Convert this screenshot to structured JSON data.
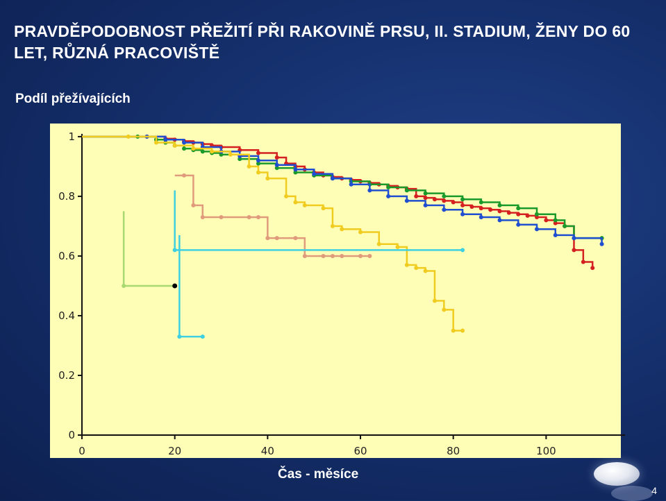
{
  "slide": {
    "title": "PRAVDĚPODOBNOST PŘEŽITÍ PŘI RAKOVINĚ PRSU, II. STADIUM, ŽENY DO 60 LET, RŮZNÁ PRACOVIŠTĚ",
    "page_number": "4"
  },
  "chart_data": {
    "type": "line",
    "subtype": "kaplan-meier step curves",
    "title": "",
    "ylabel": "Podíl přežívajících",
    "xlabel": "Čas - měsíce",
    "xlim": [
      0,
      117
    ],
    "ylim": [
      0,
      1.03
    ],
    "x_ticks": [
      0,
      20,
      40,
      60,
      80,
      100
    ],
    "y_ticks": [
      0,
      0.2,
      0.4,
      0.6,
      0.8,
      1
    ],
    "y_tick_labels": [
      "0",
      "0.2",
      "0.4",
      "0.6",
      "0.8",
      "1"
    ],
    "plot_background": "#fffeb6",
    "series": [
      {
        "name": "red",
        "color": "#d42020",
        "x": [
          0,
          14,
          18,
          20,
          22,
          24,
          26,
          28,
          30,
          34,
          38,
          42,
          44,
          46,
          48,
          50,
          52,
          54,
          56,
          58,
          60,
          62,
          64,
          66,
          68,
          70,
          72,
          74,
          76,
          78,
          80,
          82,
          84,
          86,
          88,
          90,
          92,
          94,
          96,
          98,
          100,
          102,
          104,
          106,
          108,
          110
        ],
        "y": [
          1,
          1,
          0.993,
          0.99,
          0.985,
          0.98,
          0.975,
          0.97,
          0.965,
          0.955,
          0.945,
          0.93,
          0.91,
          0.9,
          0.89,
          0.88,
          0.87,
          0.865,
          0.86,
          0.855,
          0.85,
          0.845,
          0.84,
          0.835,
          0.83,
          0.825,
          0.8,
          0.795,
          0.79,
          0.785,
          0.78,
          0.77,
          0.765,
          0.76,
          0.755,
          0.75,
          0.745,
          0.74,
          0.735,
          0.73,
          0.72,
          0.71,
          0.7,
          0.62,
          0.58,
          0.56
        ]
      },
      {
        "name": "green",
        "color": "#1a9a2a",
        "x": [
          0,
          12,
          16,
          18,
          20,
          22,
          24,
          26,
          28,
          30,
          34,
          38,
          42,
          46,
          50,
          54,
          58,
          62,
          66,
          70,
          74,
          78,
          82,
          86,
          90,
          94,
          98,
          102,
          104,
          106,
          112
        ],
        "y": [
          1,
          1,
          0.99,
          0.98,
          0.97,
          0.96,
          0.955,
          0.95,
          0.945,
          0.94,
          0.925,
          0.91,
          0.895,
          0.88,
          0.87,
          0.86,
          0.85,
          0.84,
          0.83,
          0.82,
          0.81,
          0.8,
          0.79,
          0.78,
          0.77,
          0.76,
          0.74,
          0.72,
          0.7,
          0.66,
          0.66
        ]
      },
      {
        "name": "blue",
        "color": "#1f4fd0",
        "x": [
          0,
          14,
          18,
          22,
          26,
          30,
          34,
          38,
          42,
          46,
          50,
          54,
          58,
          62,
          66,
          70,
          74,
          78,
          82,
          86,
          90,
          94,
          98,
          102,
          106,
          112
        ],
        "y": [
          1,
          1,
          0.99,
          0.98,
          0.965,
          0.95,
          0.935,
          0.92,
          0.905,
          0.89,
          0.875,
          0.86,
          0.84,
          0.82,
          0.8,
          0.785,
          0.77,
          0.755,
          0.74,
          0.73,
          0.72,
          0.705,
          0.69,
          0.67,
          0.66,
          0.64
        ]
      },
      {
        "name": "yellow",
        "color": "#f0cc20",
        "x": [
          0,
          10,
          16,
          20,
          24,
          28,
          32,
          36,
          38,
          40,
          44,
          46,
          48,
          52,
          54,
          56,
          60,
          64,
          68,
          70,
          72,
          74,
          76,
          78,
          80,
          82
        ],
        "y": [
          1,
          1,
          0.98,
          0.97,
          0.96,
          0.95,
          0.94,
          0.9,
          0.88,
          0.86,
          0.8,
          0.78,
          0.77,
          0.76,
          0.7,
          0.69,
          0.68,
          0.64,
          0.63,
          0.57,
          0.56,
          0.55,
          0.45,
          0.42,
          0.35,
          0.35
        ]
      },
      {
        "name": "salmon",
        "color": "#e09a7c",
        "x": [
          20,
          22,
          24,
          26,
          30,
          36,
          38,
          40,
          42,
          46,
          48,
          52,
          54,
          56,
          60,
          62
        ],
        "y": [
          0.87,
          0.87,
          0.77,
          0.73,
          0.73,
          0.73,
          0.73,
          0.66,
          0.66,
          0.66,
          0.6,
          0.6,
          0.6,
          0.6,
          0.6,
          0.6
        ]
      },
      {
        "name": "lightgreen",
        "color": "#a8d870",
        "x": [
          9,
          9,
          20
        ],
        "y": [
          0.75,
          0.5,
          0.5
        ]
      },
      {
        "name": "cyan",
        "color": "#3ed0e0",
        "x": [
          20,
          20,
          82
        ],
        "y": [
          0.82,
          0.62,
          0.62
        ]
      },
      {
        "name": "cyan2",
        "color": "#3ed0e0",
        "x": [
          21,
          21,
          26
        ],
        "y": [
          0.67,
          0.33,
          0.33
        ]
      }
    ]
  }
}
